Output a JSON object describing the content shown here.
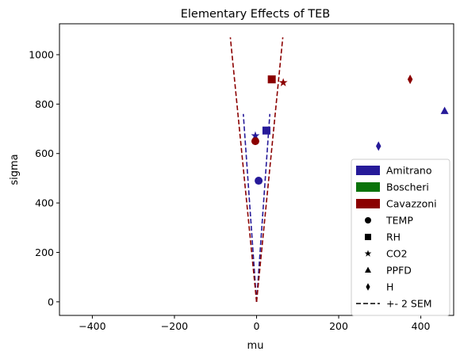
{
  "chart_data": {
    "type": "scatter",
    "title": "Elementary Effects of TEB",
    "xlabel": "mu",
    "ylabel": "sigma",
    "xlim": [
      -480,
      480
    ],
    "ylim": [
      -55,
      1125
    ],
    "xticks": [
      -400,
      -200,
      0,
      200,
      400
    ],
    "yticks": [
      0,
      200,
      400,
      600,
      800,
      1000
    ],
    "grid": false,
    "legend_position": "lower-right",
    "groups": [
      {
        "name": "Amitrano",
        "color": "#261a99"
      },
      {
        "name": "Boscheri",
        "color": "#0a730a"
      },
      {
        "name": "Cavazzoni",
        "color": "#8b0000"
      }
    ],
    "markers": [
      {
        "name": "TEMP",
        "marker": "circle-icon"
      },
      {
        "name": "RH",
        "marker": "square-icon"
      },
      {
        "name": "CO2",
        "marker": "star-icon"
      },
      {
        "name": "PPFD",
        "marker": "triangle-icon"
      },
      {
        "name": "H",
        "marker": "diamond-icon"
      }
    ],
    "sem_label": "+- 2 SEM",
    "points": [
      {
        "group": "Amitrano",
        "param": "TEMP",
        "x": 5,
        "y": 490
      },
      {
        "group": "Amitrano",
        "param": "RH",
        "x": 24,
        "y": 693
      },
      {
        "group": "Amitrano",
        "param": "CO2",
        "x": -3,
        "y": 672
      },
      {
        "group": "Amitrano",
        "param": "PPFD",
        "x": 458,
        "y": 772
      },
      {
        "group": "Amitrano",
        "param": "H",
        "x": 297,
        "y": 630
      },
      {
        "group": "Cavazzoni",
        "param": "TEMP",
        "x": -3,
        "y": 650
      },
      {
        "group": "Cavazzoni",
        "param": "RH",
        "x": 37,
        "y": 900
      },
      {
        "group": "Cavazzoni",
        "param": "CO2",
        "x": 65,
        "y": 887
      },
      {
        "group": "Cavazzoni",
        "param": "H",
        "x": 374,
        "y": 900
      }
    ],
    "sem_lines": [
      {
        "group": "Amitrano",
        "slope": 0.0425,
        "ymax": 760
      },
      {
        "group": "Cavazzoni",
        "slope": 0.0597,
        "ymax": 1070
      }
    ]
  }
}
